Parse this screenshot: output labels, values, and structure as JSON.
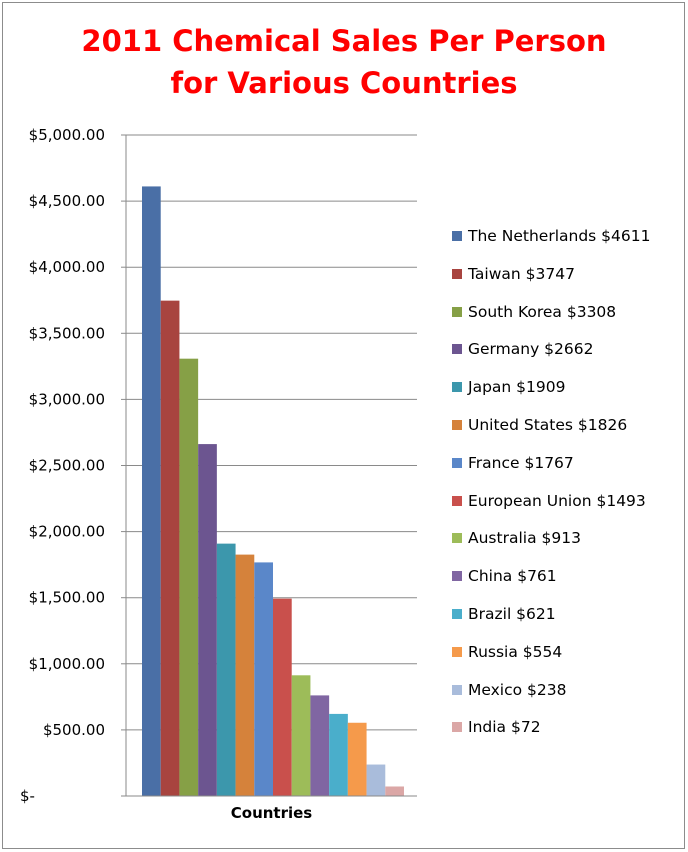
{
  "chart_data": {
    "type": "bar",
    "title_lines": [
      "2011 Chemical Sales Per Person",
      "for Various Countries"
    ],
    "xlabel": "Countries",
    "ylabel": "",
    "ylim": [
      0,
      5000
    ],
    "yticks": [
      0,
      500,
      1000,
      1500,
      2000,
      2500,
      3000,
      3500,
      4000,
      4500,
      5000
    ],
    "ytick_labels": [
      "$-",
      "$500.00",
      "$1,000.00",
      "$1,500.00",
      "$2,000.00",
      "$2,500.00",
      "$3,000.00",
      "$3,500.00",
      "$4,000.00",
      "$4,500.00",
      "$5,000.00"
    ],
    "grid": true,
    "legend_position": "right",
    "series": [
      {
        "name": "The Netherlands $4611",
        "value": 4611,
        "color": "#4a6fa6"
      },
      {
        "name": "Taiwan $3747",
        "value": 3747,
        "color": "#a8443f"
      },
      {
        "name": "South Korea $3308",
        "value": 3308,
        "color": "#86a046"
      },
      {
        "name": "Germany $2662",
        "value": 2662,
        "color": "#6c5590"
      },
      {
        "name": "Japan $1909",
        "value": 1909,
        "color": "#3c97ac"
      },
      {
        "name": "United States $1826",
        "value": 1826,
        "color": "#d5823b"
      },
      {
        "name": "France $1767",
        "value": 1767,
        "color": "#5a87c9"
      },
      {
        "name": "European Union $1493",
        "value": 1493,
        "color": "#c9504c"
      },
      {
        "name": "Australia $913",
        "value": 913,
        "color": "#9dbc59"
      },
      {
        "name": "China $761",
        "value": 761,
        "color": "#8066a2"
      },
      {
        "name": "Brazil $621",
        "value": 621,
        "color": "#4aaecb"
      },
      {
        "name": "Russia $554",
        "value": 554,
        "color": "#f59a4b"
      },
      {
        "name": "Mexico $238",
        "value": 238,
        "color": "#a9bcdb"
      },
      {
        "name": "India $72",
        "value": 72,
        "color": "#dba7a6"
      }
    ]
  }
}
